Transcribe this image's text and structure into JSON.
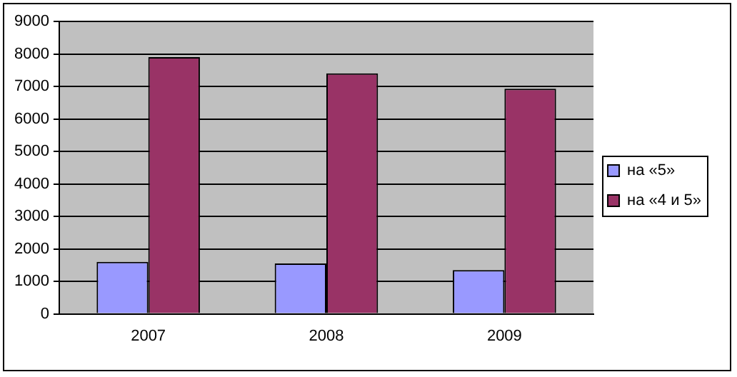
{
  "chart_data": {
    "type": "bar",
    "categories": [
      "2007",
      "2008",
      "2009"
    ],
    "series": [
      {
        "name": "на «5»",
        "color": "#9999ff",
        "values": [
          1600,
          1550,
          1350
        ]
      },
      {
        "name": "на «4 и 5»",
        "color": "#993366",
        "values": [
          7900,
          7400,
          6930
        ]
      }
    ],
    "ylim": [
      0,
      9000
    ],
    "yticks": [
      0,
      1000,
      2000,
      3000,
      4000,
      5000,
      6000,
      7000,
      8000,
      9000
    ],
    "grid": "y",
    "legend": "right"
  }
}
